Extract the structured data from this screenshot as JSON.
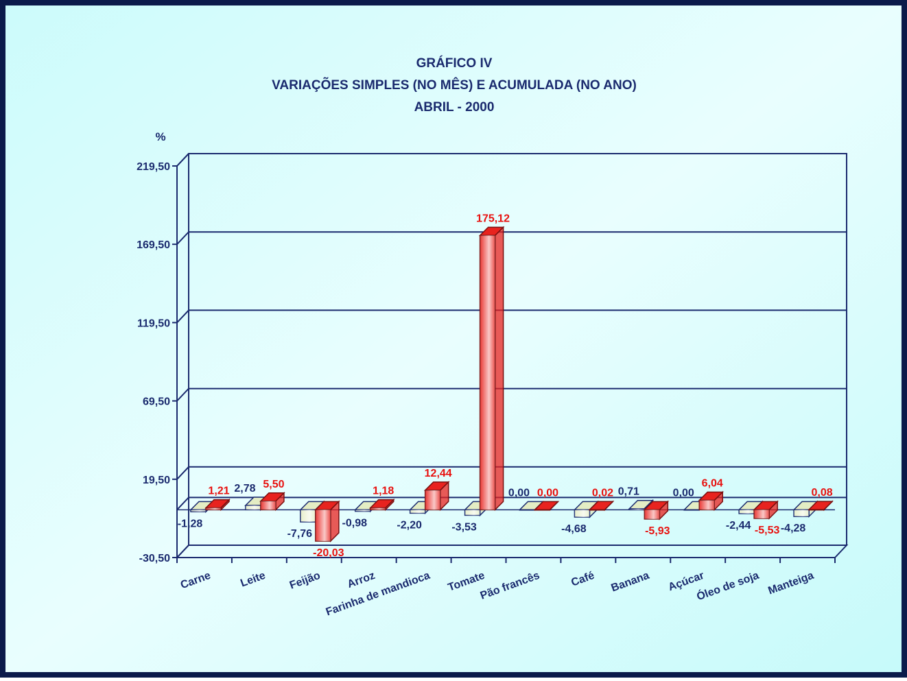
{
  "chart_data": {
    "type": "bar3d",
    "title": [
      "GRÁFICO IV",
      "VARIAÇÕES SIMPLES (NO MÊS) E ACUMULADA (NO ANO)",
      "ABRIL - 2000"
    ],
    "y_label": "%",
    "categories": [
      "Carne",
      "Leite",
      "Feijão",
      "Arroz",
      "Farinha de mandioca",
      "Tomate",
      "Pão francês",
      "Café",
      "Banana",
      "Açúcar",
      "Óleo de soja",
      "Manteiga"
    ],
    "series": [
      {
        "color": "#e4edc4",
        "values": [
          -1.28,
          2.78,
          -7.76,
          -0.98,
          -2.2,
          -3.53,
          0,
          -4.68,
          0.71,
          0,
          -2.44,
          -4.28
        ],
        "value_labels": [
          "-1,28",
          "2,78",
          "-7,76",
          "-0,98",
          "-2,20",
          "-3,53",
          "0,00",
          "-4,68",
          "0,71",
          "0,00",
          "-2,44",
          "-4,28"
        ]
      },
      {
        "color": "#e8231f",
        "values": [
          1.21,
          5.5,
          -20.03,
          1.18,
          12.44,
          175.12,
          0,
          0.02,
          -5.93,
          6.04,
          -5.53,
          0.08
        ],
        "value_labels": [
          "1,21",
          "5,50",
          "-20,03",
          "1,18",
          "12,44",
          "175,12",
          "0,00",
          "0,02",
          "-5,93",
          "6,04",
          "-5,53",
          "0,08"
        ]
      }
    ],
    "ylim": [
      -30.5,
      219.5
    ],
    "yticks": [
      {
        "value": -30.5,
        "label": "-30,50"
      },
      {
        "value": 19.5,
        "label": "19,50"
      },
      {
        "value": 69.5,
        "label": "69,50"
      },
      {
        "value": 119.5,
        "label": "119,50"
      },
      {
        "value": 169.5,
        "label": "169,50"
      },
      {
        "value": 219.5,
        "label": "219,50"
      }
    ],
    "grid": true
  }
}
